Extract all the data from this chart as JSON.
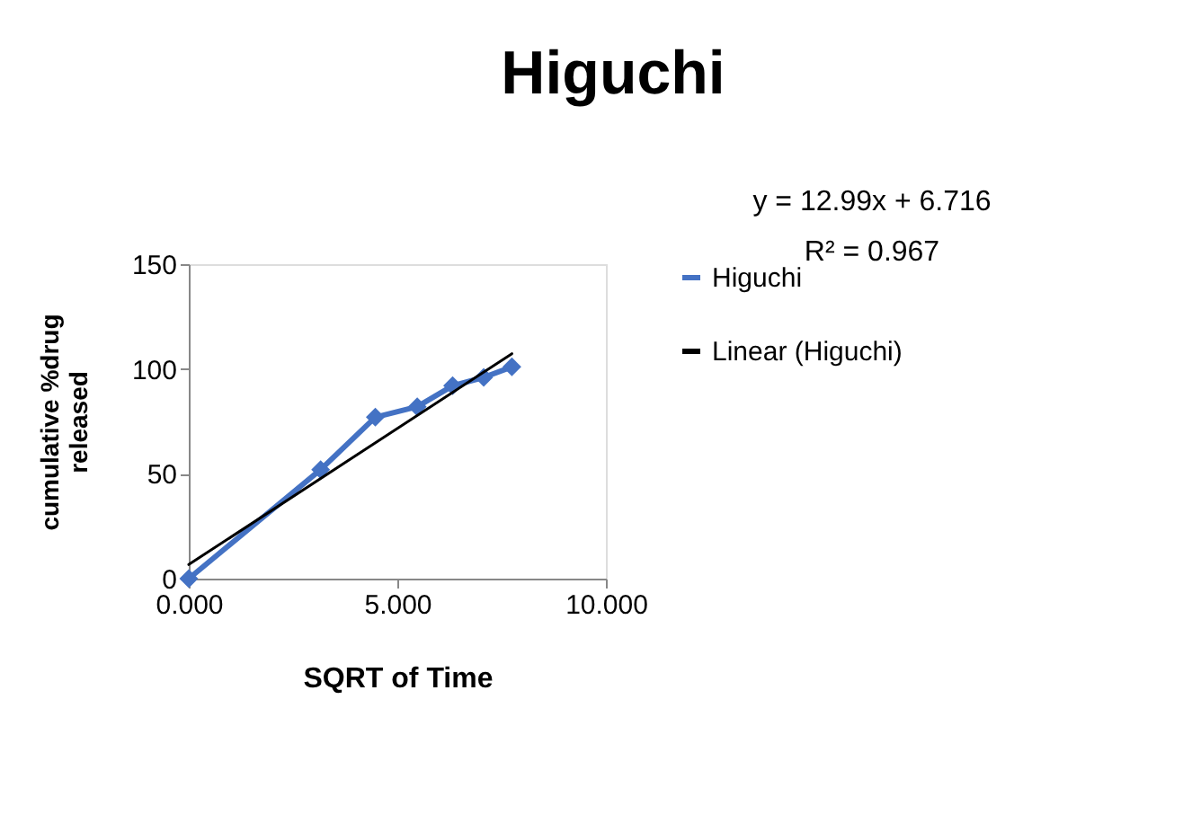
{
  "chart_data": {
    "type": "line",
    "title": "Higuchi",
    "xlabel": "SQRT of Time",
    "ylabel": "cumulative %drug released",
    "series": [
      {
        "name": "Higuchi",
        "color": "#4472c4",
        "x": [
          0,
          3.162,
          4.472,
          5.477,
          6.325,
          7.071,
          7.746
        ],
        "values": [
          0,
          52,
          77,
          82,
          92,
          96,
          101
        ],
        "marker": "diamond"
      },
      {
        "name": "Linear (Higuchi)",
        "type": "line",
        "color": "#000000",
        "x": [
          0,
          7.746
        ],
        "values": [
          6.7,
          107.3
        ],
        "marker": "none"
      }
    ],
    "xlim": [
      0,
      10
    ],
    "xticks": [
      {
        "value": 0,
        "label": "0.000"
      },
      {
        "value": 5,
        "label": "5.000"
      },
      {
        "value": 10,
        "label": "10.000"
      }
    ],
    "ylim": [
      0,
      150
    ],
    "yticks": [
      0,
      50,
      100,
      150
    ],
    "grid": false,
    "legend": "right",
    "annotations": [
      "y = 12.99x + 6.716",
      "R² = 0.967"
    ]
  }
}
